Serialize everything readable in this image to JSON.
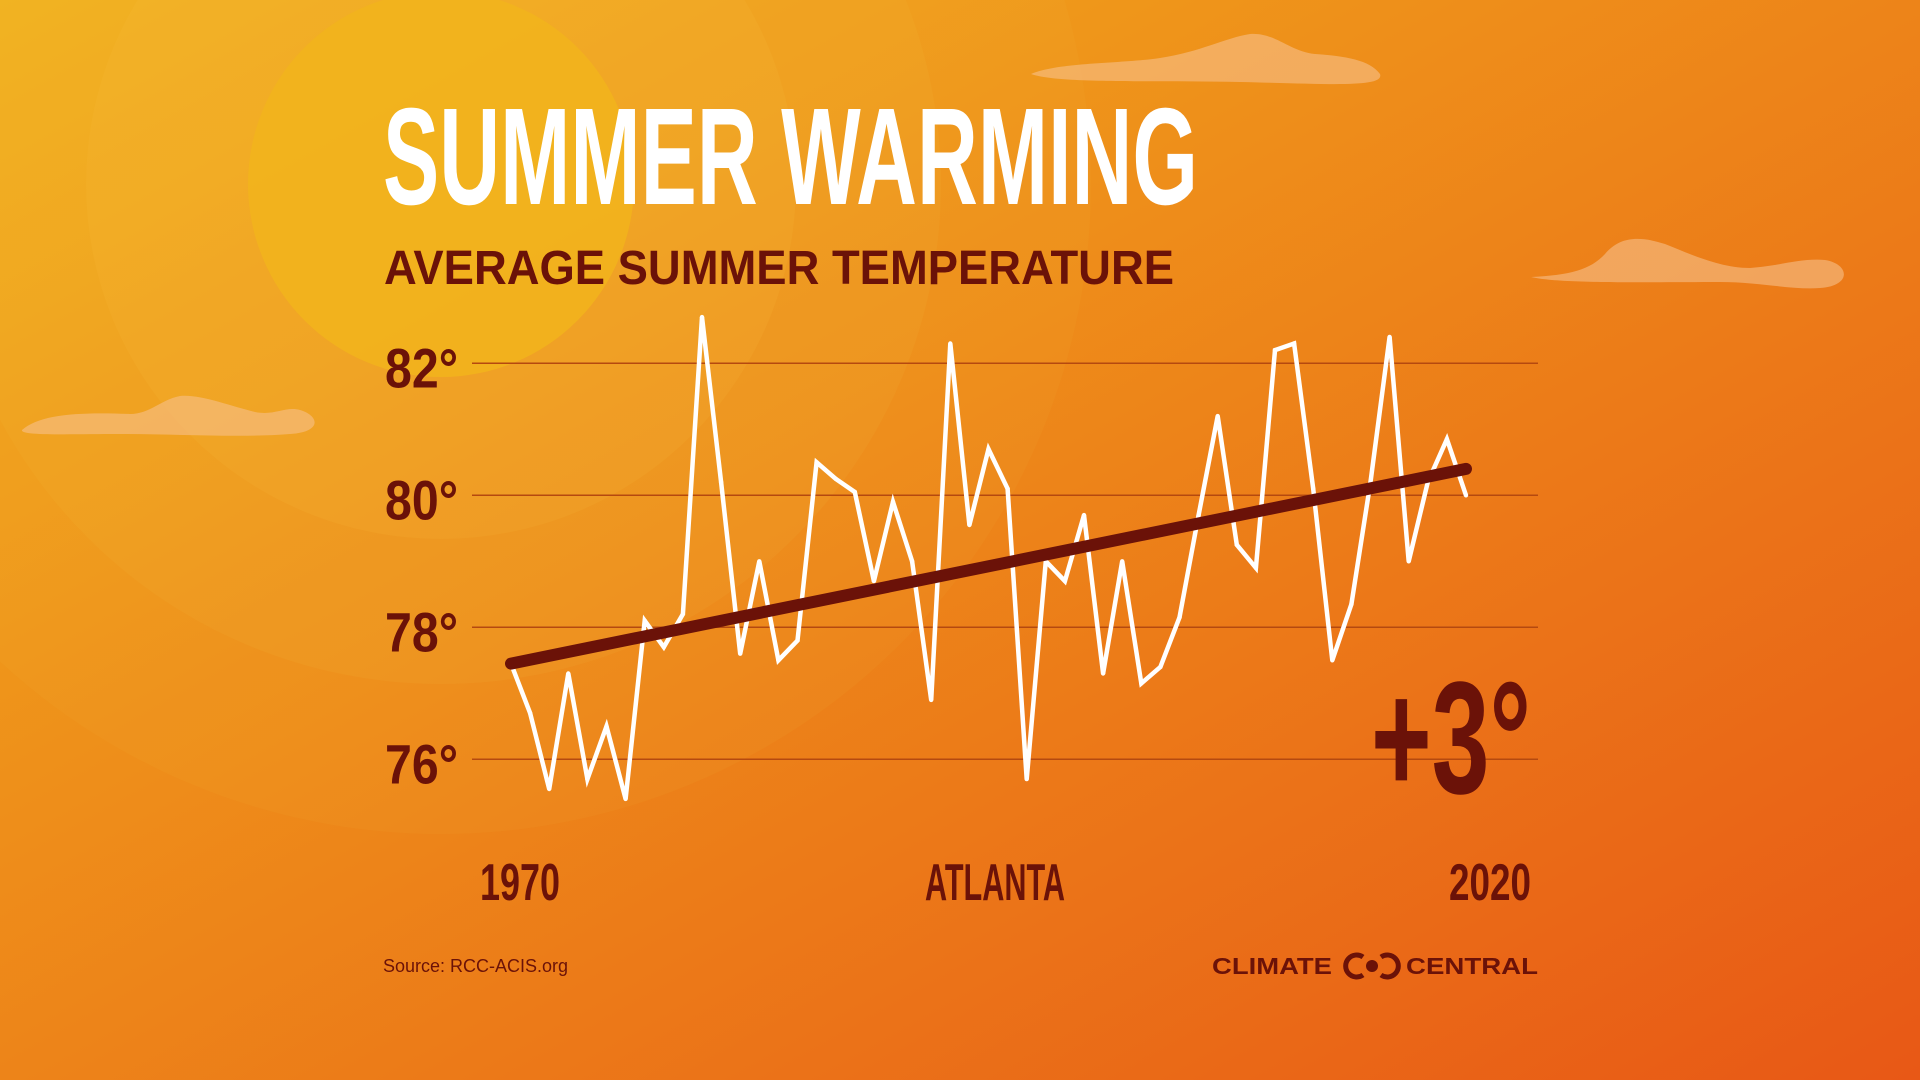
{
  "title": "SUMMER WARMING",
  "subtitle": "AVERAGE SUMMER TEMPERATURE",
  "source": "Source: RCC-ACIS.org",
  "logo_text": {
    "left": "CLIMATE",
    "right": "CENTRAL"
  },
  "change_label": "+3°",
  "colors": {
    "background_top_left": "#F2B01C",
    "background_bottom_right": "#E85816",
    "dark_red": "#6B1208",
    "data_line": "#FFFFFF",
    "gridline": "#B5490F",
    "cloud": "#F6C08A"
  },
  "chart_data": {
    "type": "line",
    "location_label": "ATLANTA",
    "x_tick_labels": [
      "1970",
      "2020"
    ],
    "y_tick_labels": [
      "82°",
      "80°",
      "78°",
      "76°"
    ],
    "y_ticks": [
      82,
      80,
      78,
      76
    ],
    "xlim": [
      1970,
      2020
    ],
    "ylim": [
      75,
      83
    ],
    "grid": true,
    "x": [
      1970,
      1971,
      1972,
      1973,
      1974,
      1975,
      1976,
      1977,
      1978,
      1979,
      1980,
      1981,
      1982,
      1983,
      1984,
      1985,
      1986,
      1987,
      1988,
      1989,
      1990,
      1991,
      1992,
      1993,
      1994,
      1995,
      1996,
      1997,
      1998,
      1999,
      2000,
      2001,
      2002,
      2003,
      2004,
      2005,
      2006,
      2007,
      2008,
      2009,
      2010,
      2011,
      2012,
      2013,
      2014,
      2015,
      2016,
      2017,
      2018,
      2019,
      2020
    ],
    "series": [
      {
        "values": [
          77.45,
          76.7,
          75.55,
          77.3,
          75.7,
          76.5,
          75.4,
          78.1,
          77.7,
          78.2,
          82.7,
          80.2,
          77.6,
          79.0,
          77.5,
          77.8,
          80.5,
          80.25,
          80.05,
          78.7,
          79.9,
          79.0,
          76.9,
          82.3,
          79.55,
          80.7,
          80.1,
          75.7,
          79.0,
          78.7,
          79.7,
          77.3,
          79.0,
          77.15,
          77.4,
          78.15,
          79.7,
          81.2,
          79.25,
          78.9,
          82.2,
          82.3,
          80.1,
          77.5,
          78.35,
          80.2,
          82.4,
          79.0,
          80.2,
          80.85,
          80.0
        ]
      }
    ],
    "trend": {
      "start": {
        "x": 1970,
        "y": 77.45
      },
      "end": {
        "x": 2020,
        "y": 80.4
      }
    }
  }
}
